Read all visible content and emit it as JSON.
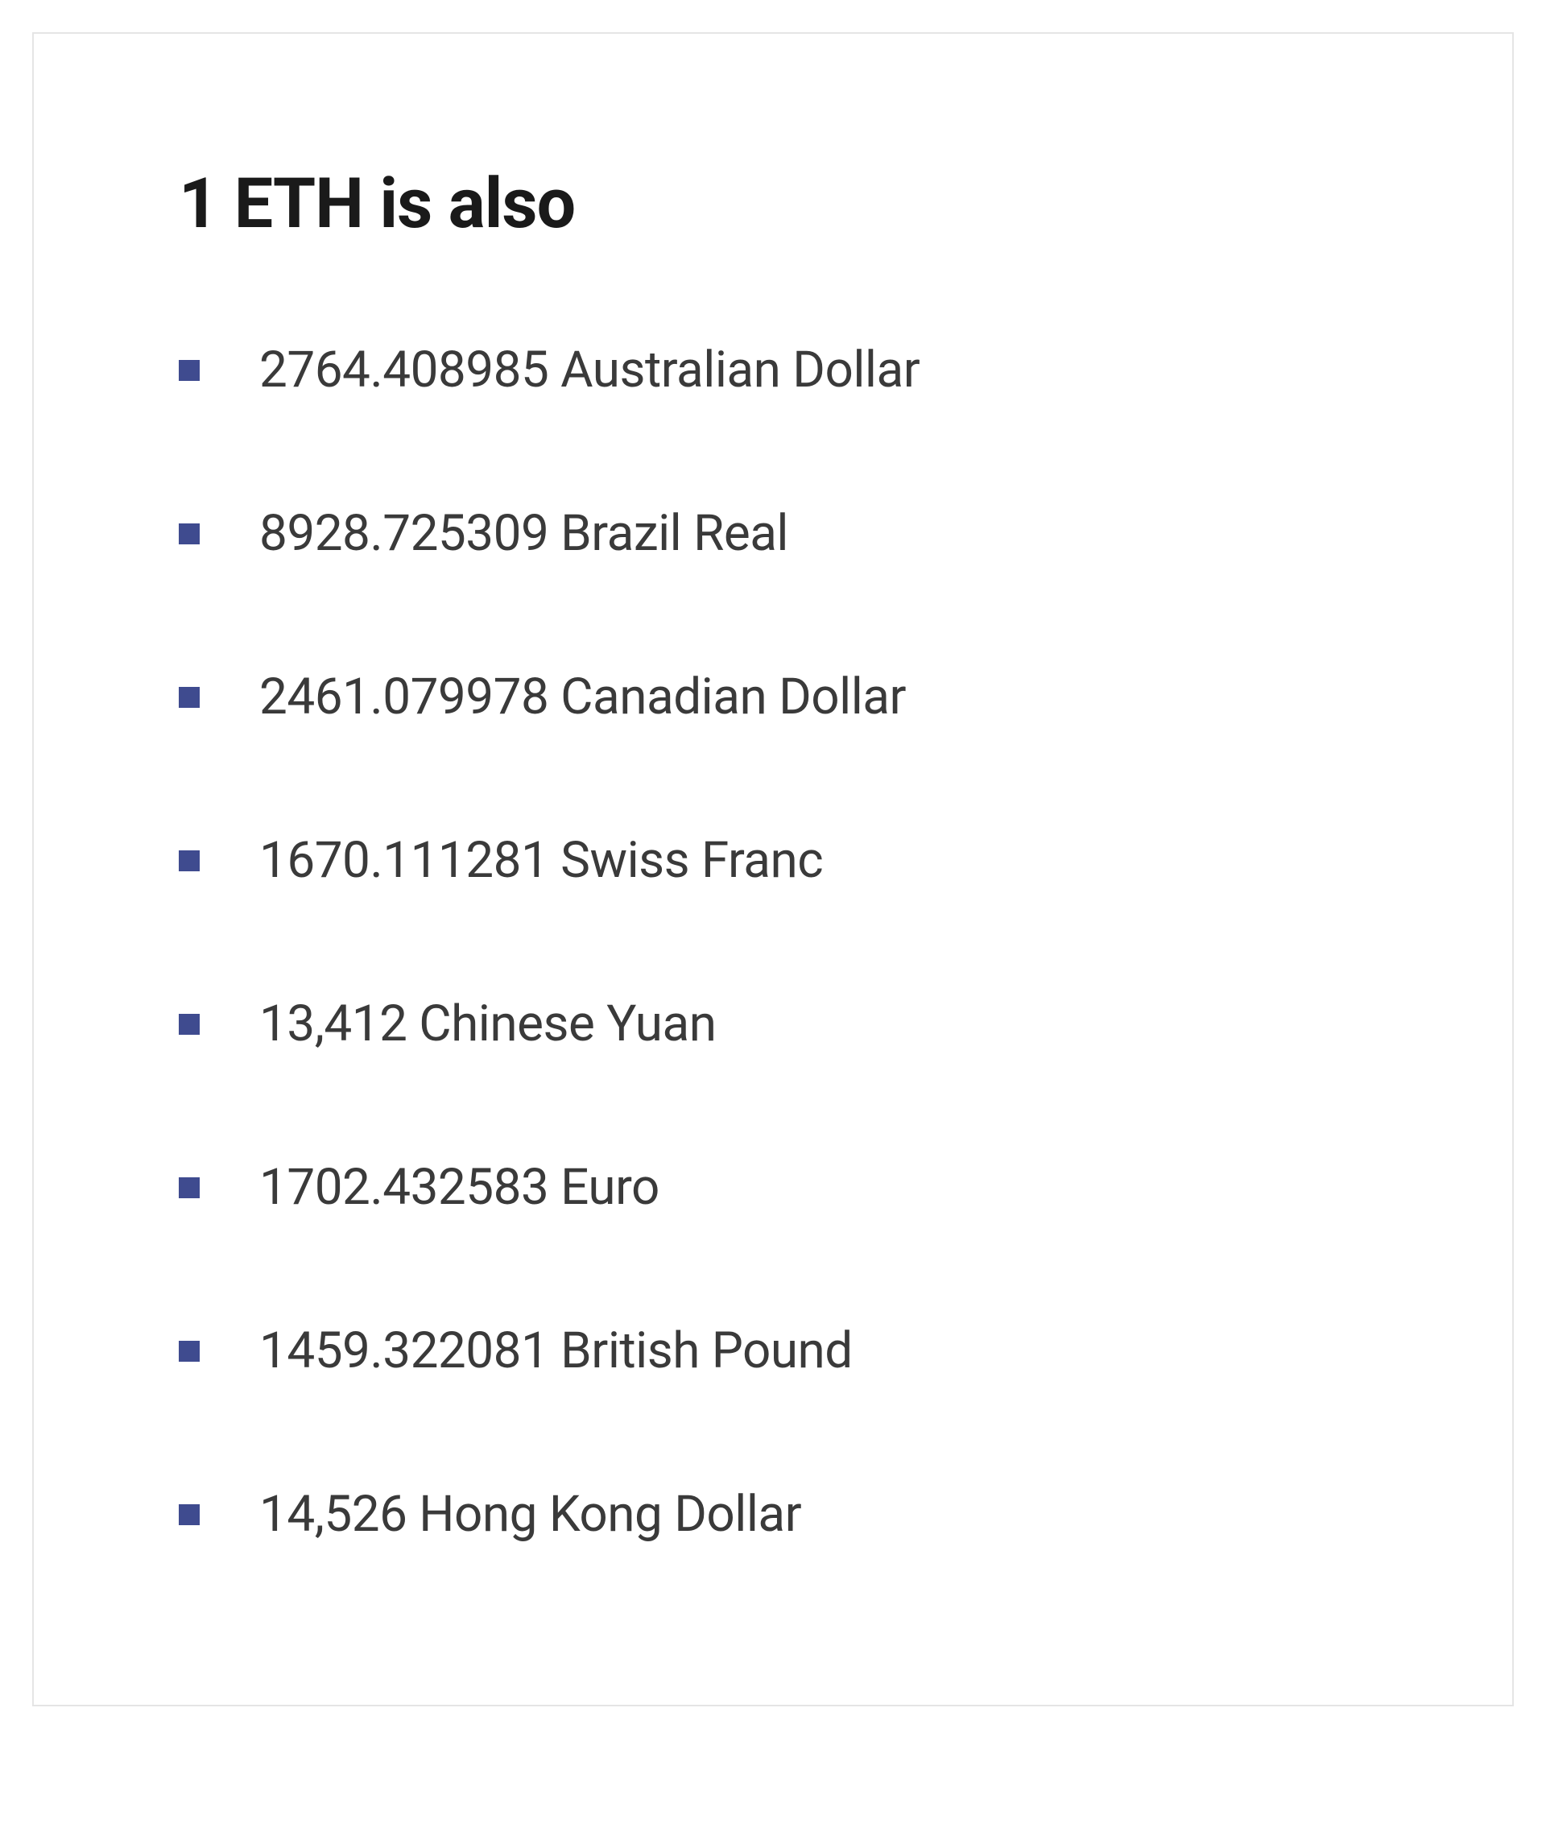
{
  "card": {
    "title": "1 ETH is also",
    "border_color": "#e5e5e5",
    "background_color": "#ffffff",
    "title_color": "#1a1a1a",
    "title_fontsize": 86,
    "title_fontweight": 700,
    "bullet_color": "#3f4b8f",
    "bullet_size": 26,
    "item_text_color": "#3a3a3a",
    "item_fontsize": 62,
    "items": [
      {
        "text": "2764.408985 Australian Dollar"
      },
      {
        "text": "8928.725309 Brazil Real"
      },
      {
        "text": "2461.079978 Canadian Dollar"
      },
      {
        "text": "1670.111281 Swiss Franc"
      },
      {
        "text": "13,412 Chinese Yuan"
      },
      {
        "text": "1702.432583 Euro"
      },
      {
        "text": "1459.322081 British Pound"
      },
      {
        "text": "14,526 Hong Kong Dollar"
      }
    ]
  }
}
